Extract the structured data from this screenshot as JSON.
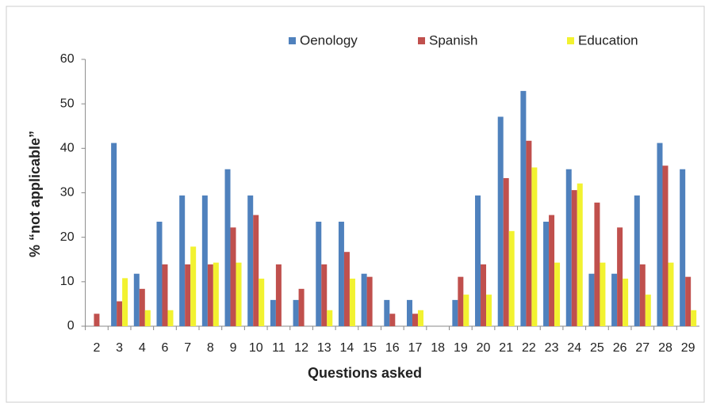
{
  "chart_data": {
    "type": "bar",
    "y_label": "% “not applicable”",
    "x_label": "Questions asked",
    "categories": [
      "2",
      "3",
      "4",
      "6",
      "7",
      "8",
      "9",
      "10",
      "11",
      "12",
      "13",
      "14",
      "15",
      "16",
      "17",
      "18",
      "19",
      "20",
      "21",
      "22",
      "23",
      "24",
      "25",
      "26",
      "27",
      "28",
      "29"
    ],
    "series": [
      {
        "name": "Oenology",
        "color": "#4f81bd",
        "values": [
          0,
          41.2,
          11.8,
          23.5,
          29.4,
          29.4,
          35.3,
          29.4,
          5.9,
          5.9,
          23.5,
          23.5,
          11.8,
          5.9,
          5.9,
          0,
          5.9,
          29.4,
          47.1,
          52.9,
          23.5,
          35.3,
          11.8,
          11.8,
          29.4,
          41.2,
          35.3
        ]
      },
      {
        "name": "Spanish",
        "color": "#c0504d",
        "values": [
          2.8,
          5.6,
          8.4,
          13.9,
          13.9,
          13.9,
          22.2,
          25,
          13.9,
          8.4,
          13.9,
          16.7,
          11.1,
          2.8,
          2.8,
          0,
          11.1,
          13.9,
          33.3,
          41.7,
          25,
          30.6,
          27.8,
          22.2,
          13.9,
          36.1,
          11.1
        ]
      },
      {
        "name": "Education",
        "color": "#f2f230",
        "values": [
          0,
          10.8,
          3.6,
          3.6,
          17.9,
          14.3,
          14.3,
          10.7,
          0,
          0,
          3.6,
          10.7,
          0,
          0,
          3.6,
          0,
          7.1,
          7.1,
          21.4,
          35.7,
          14.3,
          32.1,
          14.3,
          10.7,
          7.1,
          14.3,
          3.6
        ]
      }
    ],
    "ylim": [
      0,
      60
    ],
    "yticks": [
      0,
      10,
      20,
      30,
      40,
      50,
      60
    ],
    "grid": false,
    "legend": "top"
  }
}
